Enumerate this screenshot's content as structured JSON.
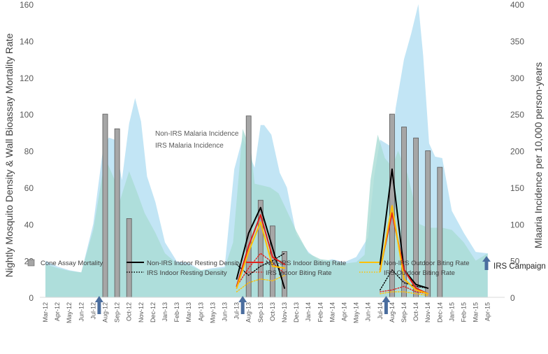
{
  "chart_data": {
    "type": "combo",
    "x_categories": [
      "Mar-12",
      "Apr-12",
      "May-12",
      "Jun-12",
      "Jul-12",
      "Aug-12",
      "Sep-12",
      "Oct-12",
      "Nov-12",
      "Dec-12",
      "Jan-13",
      "Feb-13",
      "Mar-13",
      "Apr-13",
      "May-13",
      "Jun-13",
      "Jul-13",
      "Aug-13",
      "Sep-13",
      "Oct-13",
      "Nov-13",
      "Dec-13",
      "Jan-14",
      "Feb-14",
      "Mar-14",
      "Apr-14",
      "May-14",
      "Jun-14",
      "Jul-14",
      "Aug-14",
      "Sep-14",
      "Oct-14",
      "Nov-14",
      "Dec-14",
      "Jan-15",
      "Feb-15",
      "Mar-15",
      "Apr-15"
    ],
    "y_left": {
      "label": "Nightly Mosquito Density & Wall Bioassay Mortality Rate",
      "min": 0,
      "max": 160,
      "step": 20,
      "ticks": [
        "0",
        "20",
        "40",
        "60",
        "80",
        "100",
        "120",
        "140",
        "160"
      ]
    },
    "y_right": {
      "label": "Mlaaria Incidence per 10,000 person-years",
      "min": 0,
      "max": 400,
      "step": 50,
      "ticks": [
        "0",
        "50",
        "100",
        "150",
        "200",
        "250",
        "300",
        "350",
        "400"
      ]
    },
    "area_series": [
      {
        "name": "Non-IRS Malaria Incidence",
        "axis": "right",
        "color": "#bfe4f4",
        "points": [
          [
            0,
            50
          ],
          [
            1,
            42
          ],
          [
            2,
            37
          ],
          [
            3,
            34
          ],
          [
            4,
            100
          ],
          [
            4.8,
            200
          ],
          [
            5.3,
            218
          ],
          [
            5.8,
            215
          ],
          [
            6.4,
            160
          ],
          [
            7.0,
            237
          ],
          [
            7.5,
            272
          ],
          [
            8.0,
            240
          ],
          [
            8.5,
            165
          ],
          [
            9.2,
            130
          ],
          [
            10,
            75
          ],
          [
            11,
            49
          ],
          [
            12,
            47
          ],
          [
            13,
            37
          ],
          [
            14,
            40
          ],
          [
            15,
            42
          ],
          [
            15.8,
            175
          ],
          [
            16.5,
            218
          ],
          [
            17.5,
            177
          ],
          [
            18.0,
            235
          ],
          [
            18.3,
            235
          ],
          [
            18.9,
            222
          ],
          [
            19.6,
            170
          ],
          [
            20.2,
            150
          ],
          [
            21,
            85
          ],
          [
            22,
            62
          ],
          [
            23,
            48
          ],
          [
            24,
            52
          ],
          [
            25,
            48
          ],
          [
            26,
            55
          ],
          [
            27,
            82
          ],
          [
            27.5,
            165
          ],
          [
            28,
            215
          ],
          [
            29.0,
            205
          ],
          [
            29.3,
            258
          ],
          [
            30.0,
            325
          ],
          [
            30.6,
            360
          ],
          [
            31.2,
            400
          ],
          [
            31.6,
            330
          ],
          [
            32.1,
            210
          ],
          [
            32.6,
            192
          ],
          [
            33.2,
            190
          ],
          [
            34.0,
            118
          ],
          [
            35.0,
            88
          ],
          [
            36,
            62
          ],
          [
            37,
            60
          ]
        ]
      },
      {
        "name": "IRS Malaria Incidence",
        "axis": "right",
        "color": "#a9dcd5",
        "points": [
          [
            0,
            45
          ],
          [
            1,
            40
          ],
          [
            2,
            36
          ],
          [
            3,
            34
          ],
          [
            4,
            92
          ],
          [
            5,
            190
          ],
          [
            5.8,
            160
          ],
          [
            6.2,
            130
          ],
          [
            7.0,
            172
          ],
          [
            7.7,
            142
          ],
          [
            8.3,
            115
          ],
          [
            9.2,
            88
          ],
          [
            10,
            60
          ],
          [
            11,
            46
          ],
          [
            12,
            44
          ],
          [
            13,
            37
          ],
          [
            14,
            38
          ],
          [
            15,
            40
          ],
          [
            15.7,
            75
          ],
          [
            16.5,
            230
          ],
          [
            17.2,
            200
          ],
          [
            17.5,
            155
          ],
          [
            18.3,
            152
          ],
          [
            18.8,
            150
          ],
          [
            19.5,
            142
          ],
          [
            20,
            125
          ],
          [
            21,
            90
          ],
          [
            22,
            60
          ],
          [
            23,
            52
          ],
          [
            24,
            50
          ],
          [
            25,
            46
          ],
          [
            26,
            48
          ],
          [
            26.7,
            58
          ],
          [
            27.2,
            160
          ],
          [
            27.8,
            222
          ],
          [
            28.4,
            190
          ],
          [
            29.0,
            178
          ],
          [
            29.5,
            200
          ],
          [
            30.3,
            168
          ],
          [
            31.3,
            100
          ],
          [
            32,
            95
          ],
          [
            32.5,
            95
          ],
          [
            33.2,
            95
          ],
          [
            34,
            92
          ],
          [
            35,
            75
          ],
          [
            36,
            50
          ],
          [
            37,
            60
          ]
        ]
      }
    ],
    "bars": {
      "name": "Cone Assay Mortality",
      "axis": "left",
      "color": "#a6a6a6",
      "points": [
        [
          5,
          100
        ],
        [
          6,
          92
        ],
        [
          7,
          43
        ],
        [
          17,
          99
        ],
        [
          18,
          53
        ],
        [
          19,
          39
        ],
        [
          20,
          25
        ],
        [
          29,
          100
        ],
        [
          30,
          93
        ],
        [
          31,
          87
        ],
        [
          32,
          80
        ],
        [
          33,
          71
        ]
      ]
    },
    "line_series": [
      {
        "name": "Non-IRS Indoor Resting Density",
        "axis": "left",
        "style": "solid",
        "color": "#000000",
        "points": [
          [
            16,
            10
          ],
          [
            17,
            35
          ],
          [
            18,
            49
          ],
          [
            19,
            27
          ],
          [
            20,
            5
          ],
          [
            28,
            18
          ],
          [
            29,
            70
          ],
          [
            30,
            15
          ],
          [
            31,
            7
          ],
          [
            32,
            5
          ]
        ]
      },
      {
        "name": "IRS Indoor Resting Density",
        "axis": "left",
        "style": "dotted",
        "color": "#000000",
        "points": [
          [
            16,
            18
          ],
          [
            17,
            12
          ],
          [
            18,
            17
          ],
          [
            19,
            20
          ],
          [
            20,
            24
          ],
          [
            28,
            4
          ],
          [
            29,
            15
          ],
          [
            30,
            8
          ],
          [
            31,
            6
          ],
          [
            32,
            5
          ]
        ]
      },
      {
        "name": "Non-IRS Indoor Biting Rate",
        "axis": "left",
        "style": "solid",
        "color": "#e0201b",
        "points": [
          [
            16,
            6
          ],
          [
            17,
            28
          ],
          [
            18,
            45
          ],
          [
            19,
            22
          ],
          [
            20,
            18
          ],
          [
            28,
            15
          ],
          [
            29,
            46
          ],
          [
            30,
            15
          ],
          [
            31,
            5
          ],
          [
            32,
            2
          ]
        ]
      },
      {
        "name": "IRS Indoor Biting Rate",
        "axis": "left",
        "style": "dotted",
        "color": "#e0201b",
        "points": [
          [
            16,
            6
          ],
          [
            17,
            16
          ],
          [
            18,
            24
          ],
          [
            19,
            19
          ],
          [
            20,
            13
          ],
          [
            28,
            3
          ],
          [
            29,
            4
          ],
          [
            30,
            6
          ],
          [
            31,
            3
          ],
          [
            32,
            2
          ]
        ]
      },
      {
        "name": "Non-IRS Outdoor Biting Rate",
        "axis": "left",
        "style": "solid",
        "color": "#ffc000",
        "points": [
          [
            16,
            5
          ],
          [
            17,
            25
          ],
          [
            18,
            41
          ],
          [
            19,
            17
          ],
          [
            20,
            16
          ],
          [
            28,
            14
          ],
          [
            29,
            50
          ],
          [
            30,
            10
          ],
          [
            31,
            4
          ],
          [
            32,
            2
          ]
        ]
      },
      {
        "name": "IRS Outdoor Biting Rate",
        "axis": "left",
        "style": "dotted",
        "color": "#ffc000",
        "points": [
          [
            16,
            3
          ],
          [
            17,
            8
          ],
          [
            18,
            10
          ],
          [
            19,
            9
          ],
          [
            20,
            12
          ],
          [
            28,
            2
          ],
          [
            29,
            3
          ],
          [
            30,
            3
          ],
          [
            31,
            2
          ],
          [
            32,
            1
          ]
        ]
      }
    ],
    "irs_campaign": {
      "label": "IRS Campaign",
      "positions": [
        4.5,
        16.5,
        28.5
      ],
      "color": "#4a6d9e"
    },
    "area_labels": [
      "Non-IRS Malaria Incidence",
      "IRS Malaria Incidence"
    ],
    "legend": [
      {
        "label": "Cone Assay Mortality",
        "kind": "bar",
        "color": "#a6a6a6"
      },
      {
        "label": "Non-IRS Indoor Resting Density",
        "kind": "solid",
        "color": "#000000"
      },
      {
        "label": "Non-IRS Indoor Biting Rate",
        "kind": "solid",
        "color": "#e0201b"
      },
      {
        "label": "Non-IRS Outdoor Biting Rate",
        "kind": "solid",
        "color": "#ffc000"
      },
      {
        "label": "IRS Indoor Resting Density",
        "kind": "dotted",
        "color": "#000000"
      },
      {
        "label": "IRS Indoor Biting Rate",
        "kind": "dotted",
        "color": "#e0201b"
      },
      {
        "label": "IRS Outdoor Biting Rate",
        "kind": "dotted",
        "color": "#ffc000"
      }
    ]
  }
}
